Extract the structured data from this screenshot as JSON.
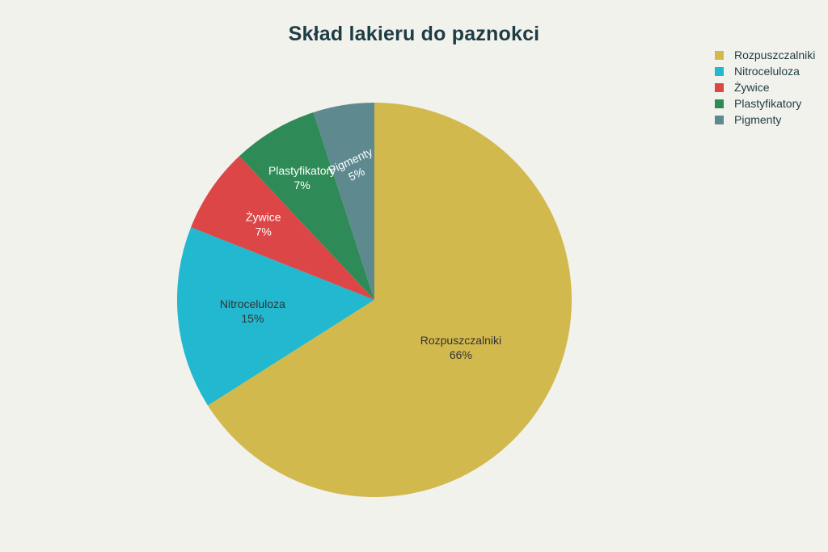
{
  "chart_data": {
    "type": "pie",
    "title": "Skład lakieru do paznokci",
    "categories": [
      "Rozpuszczalniki",
      "Nitroceluloza",
      "Żywice",
      "Plastyfikatory",
      "Pigmenty"
    ],
    "values": [
      66,
      15,
      7,
      7,
      5
    ],
    "value_labels": [
      "66%",
      "15%",
      "7%",
      "7%",
      "5%"
    ],
    "colors": [
      "#d2b94d",
      "#22b8cf",
      "#dc4646",
      "#2e8b57",
      "#5e8a8f"
    ],
    "label_colors": [
      "#333333",
      "#333333",
      "#ffffff",
      "#ffffff",
      "#ffffff"
    ],
    "legend_position": "top-right",
    "direction": "clockwise",
    "start_angle": "top"
  }
}
